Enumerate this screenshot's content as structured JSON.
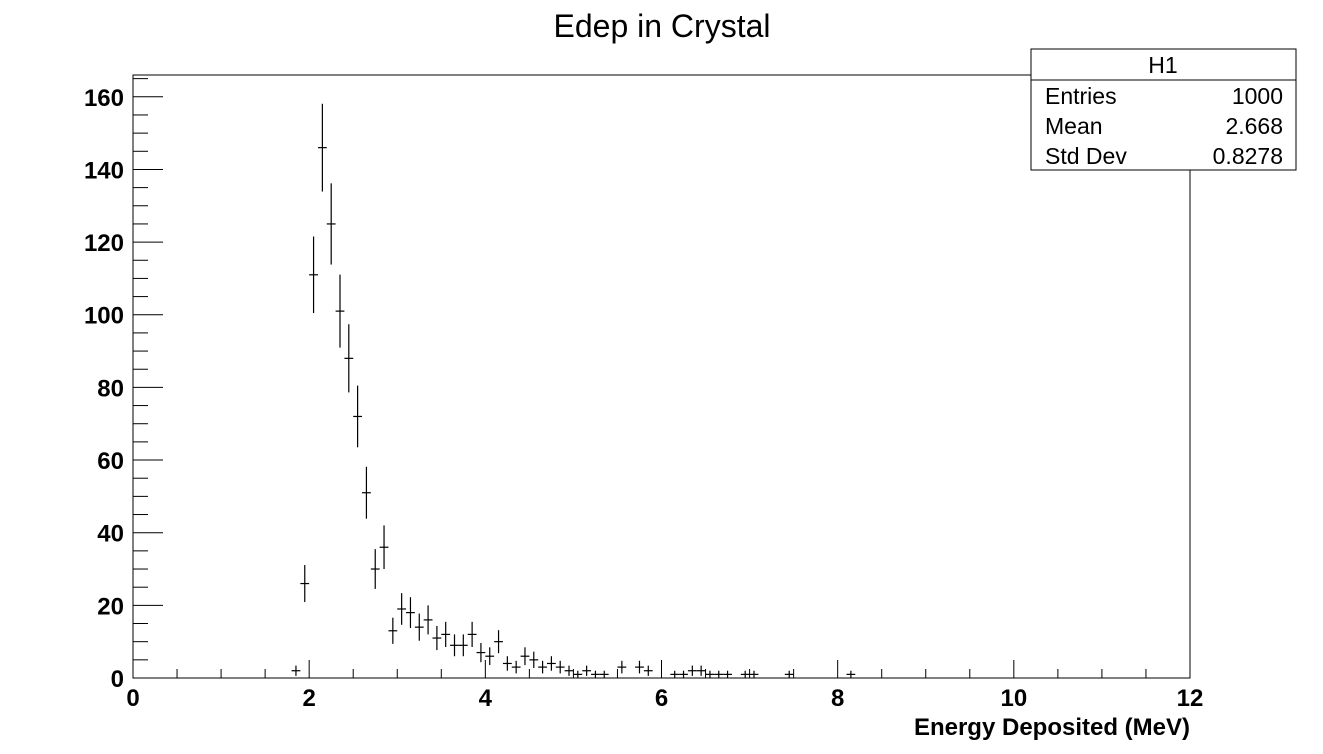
{
  "chart_data": {
    "type": "histogram",
    "title": "Edep in Crystal",
    "xlabel": "Energy Deposited (MeV)",
    "ylabel": "",
    "xlim": [
      0,
      12
    ],
    "ylim": [
      0,
      166
    ],
    "bin_width": 0.1,
    "x_ticks": [
      0,
      2,
      4,
      6,
      8,
      10,
      12
    ],
    "y_ticks": [
      0,
      20,
      40,
      60,
      80,
      100,
      120,
      140,
      160
    ],
    "points": [
      [
        1.85,
        2
      ],
      [
        1.95,
        26
      ],
      [
        2.05,
        111
      ],
      [
        2.15,
        146
      ],
      [
        2.25,
        125
      ],
      [
        2.35,
        101
      ],
      [
        2.45,
        88
      ],
      [
        2.55,
        72
      ],
      [
        2.65,
        51
      ],
      [
        2.75,
        30
      ],
      [
        2.85,
        36
      ],
      [
        2.95,
        13
      ],
      [
        3.05,
        19
      ],
      [
        3.15,
        18
      ],
      [
        3.25,
        14
      ],
      [
        3.35,
        16
      ],
      [
        3.45,
        11
      ],
      [
        3.55,
        12
      ],
      [
        3.65,
        9
      ],
      [
        3.75,
        9
      ],
      [
        3.85,
        12
      ],
      [
        3.95,
        7
      ],
      [
        4.05,
        6
      ],
      [
        4.15,
        10
      ],
      [
        4.25,
        4
      ],
      [
        4.35,
        3
      ],
      [
        4.45,
        6
      ],
      [
        4.55,
        5
      ],
      [
        4.65,
        3
      ],
      [
        4.75,
        4
      ],
      [
        4.85,
        3
      ],
      [
        4.95,
        2
      ],
      [
        5.05,
        1
      ],
      [
        5.15,
        2
      ],
      [
        5.25,
        1
      ],
      [
        5.35,
        1
      ],
      [
        5.55,
        3
      ],
      [
        5.75,
        3
      ],
      [
        5.85,
        2
      ],
      [
        6.15,
        1
      ],
      [
        6.25,
        1
      ],
      [
        6.35,
        2
      ],
      [
        6.45,
        2
      ],
      [
        6.55,
        1
      ],
      [
        6.65,
        1
      ],
      [
        6.75,
        1
      ],
      [
        6.95,
        1
      ],
      [
        7.05,
        1
      ],
      [
        7.45,
        1
      ],
      [
        8.15,
        1
      ]
    ],
    "stats_box": {
      "name": "H1",
      "rows": [
        {
          "label": "Entries",
          "value": "1000"
        },
        {
          "label": "Mean",
          "value": "2.668"
        },
        {
          "label": "Std Dev",
          "value": "0.8278"
        }
      ]
    },
    "grid": false,
    "legend": "top-right"
  }
}
